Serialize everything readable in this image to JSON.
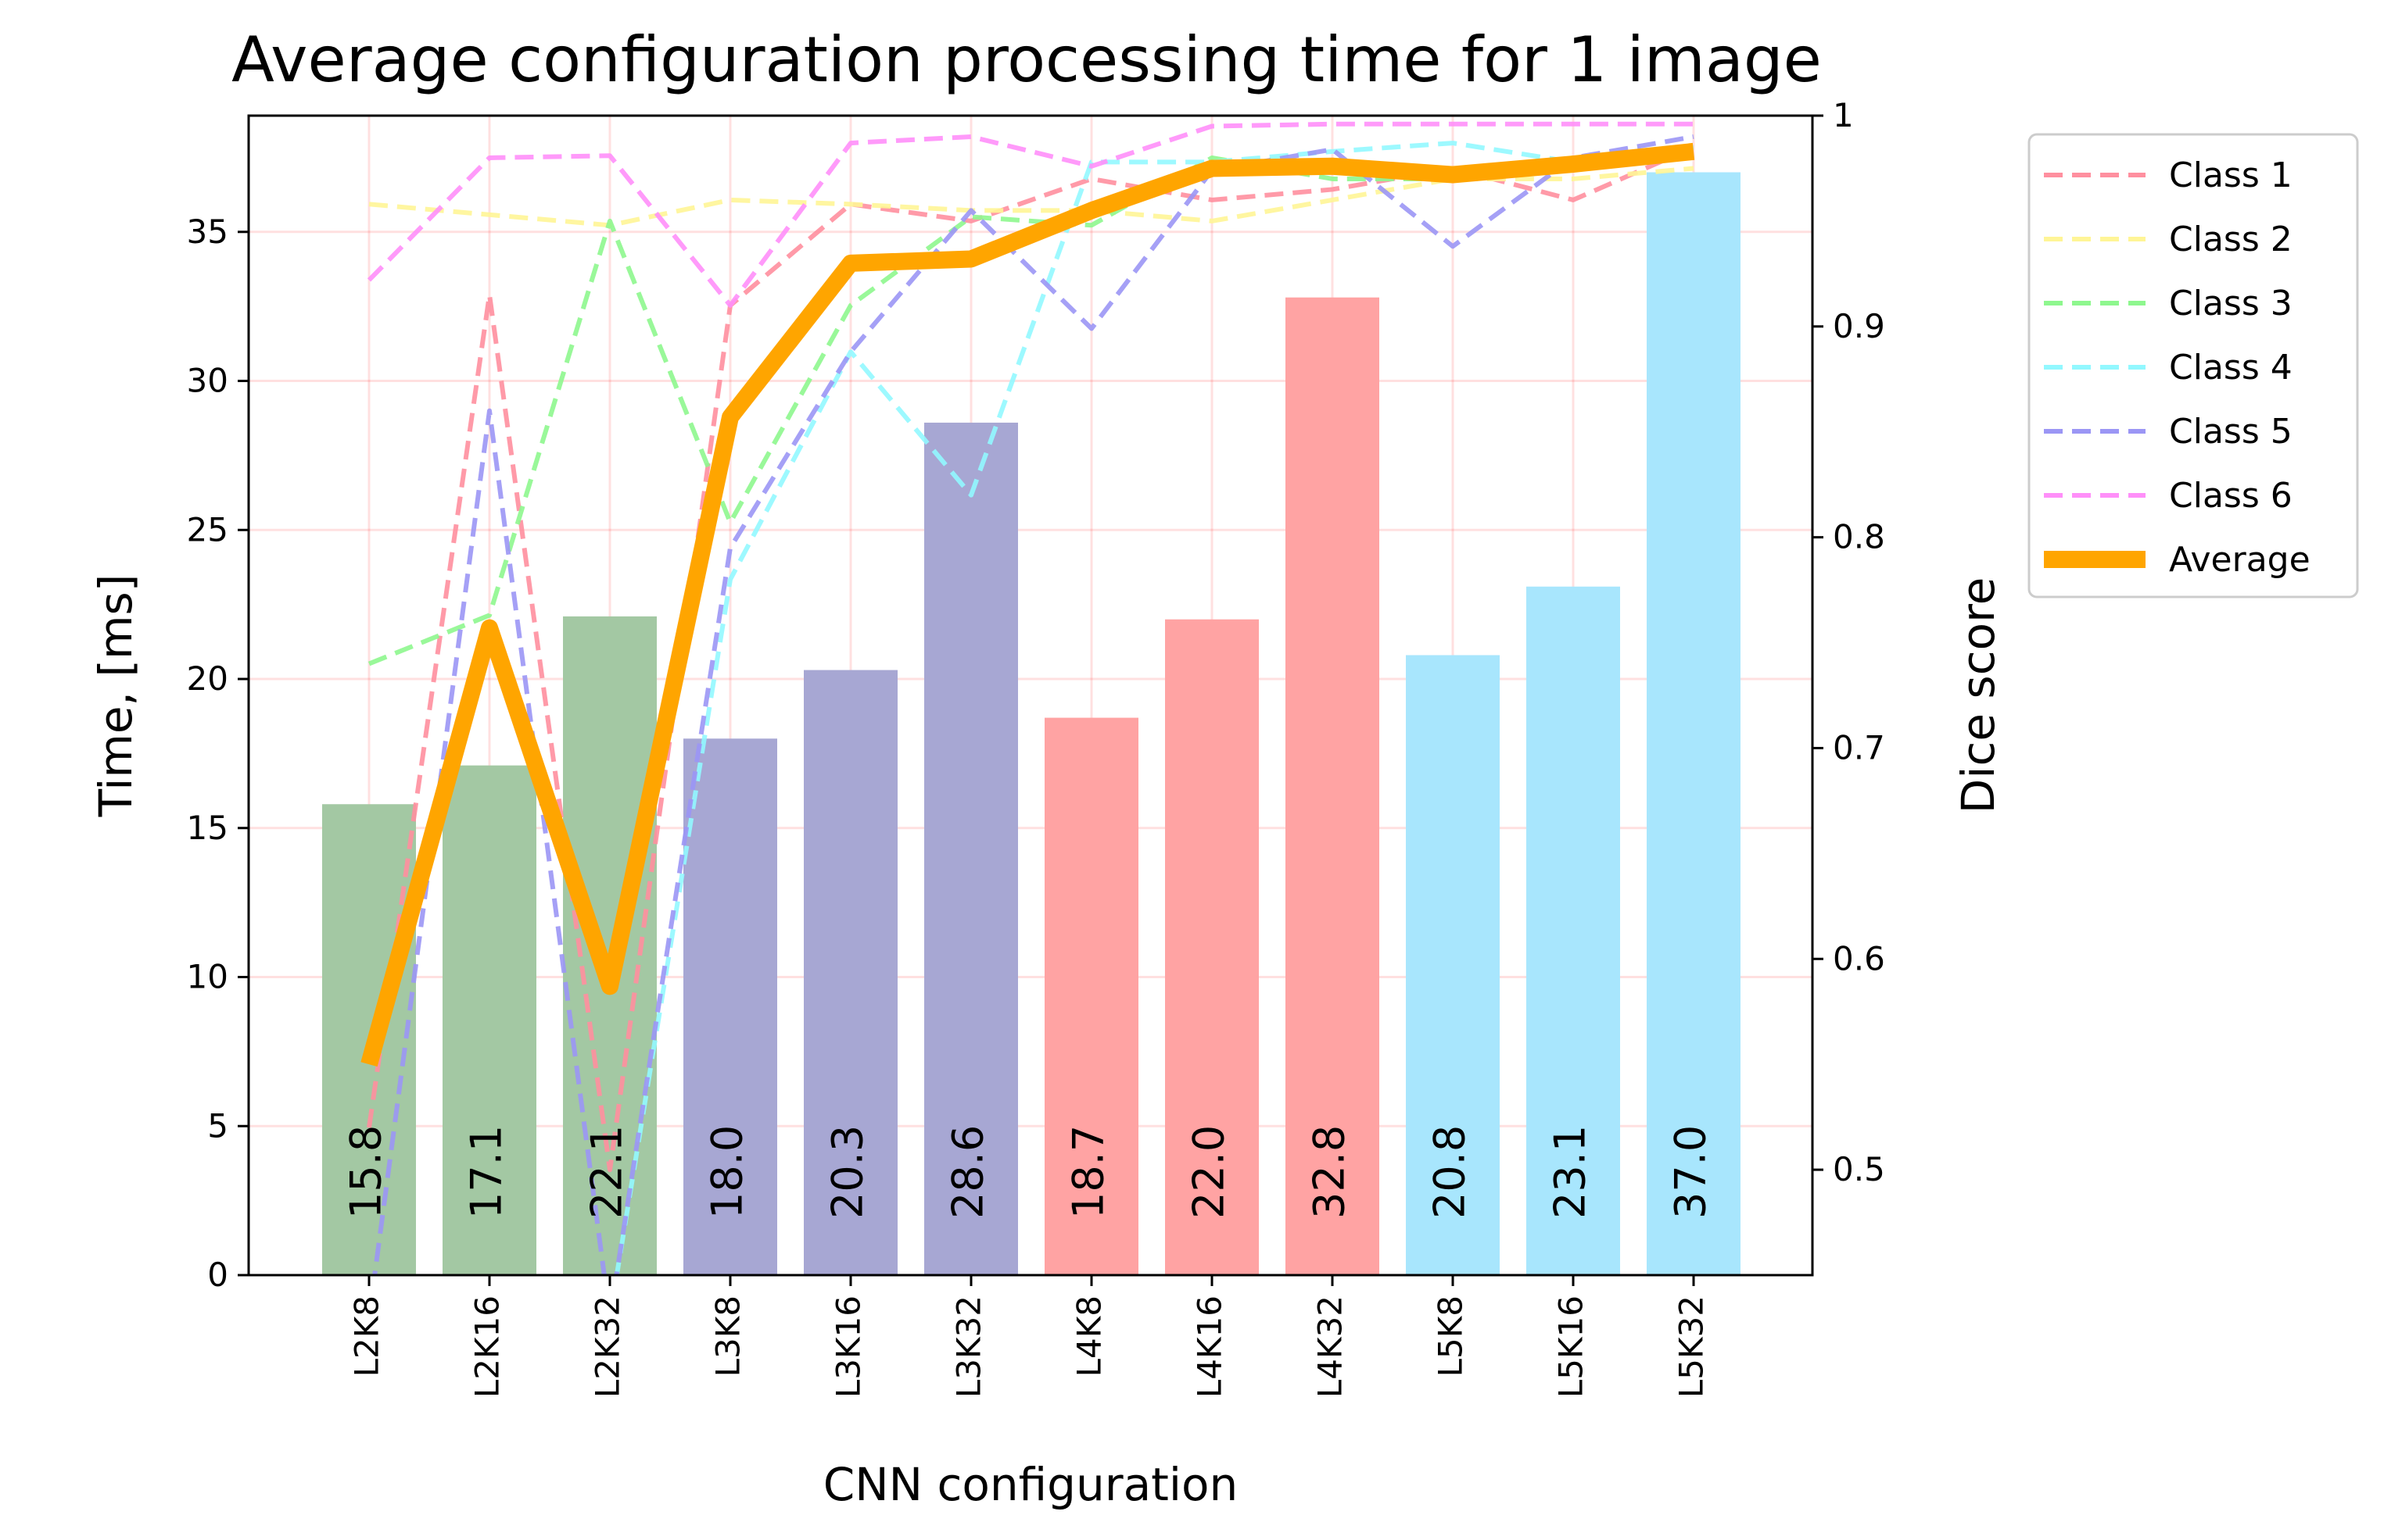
{
  "chart_data": {
    "type": "bar+line",
    "title": "Average configuration processing time for 1 image",
    "xlabel": "CNN configuration",
    "ylabel_left": "Time, [ms]",
    "ylabel_right": "Dice score",
    "ylim_left": [
      0,
      38.9
    ],
    "ylim_right": [
      0.45,
      1.0
    ],
    "yticks_left": [
      0,
      5,
      10,
      15,
      20,
      25,
      30,
      35
    ],
    "yticks_right": [
      0.5,
      0.6,
      0.7,
      0.8,
      0.9,
      1.0
    ],
    "grid": true,
    "legend_position": "outside-right",
    "categories": [
      "L2K8",
      "L2K16",
      "L2K32",
      "L3K8",
      "L3K16",
      "L3K32",
      "L4K8",
      "L4K16",
      "L4K32",
      "L5K8",
      "L5K16",
      "L5K32"
    ],
    "bars": {
      "values": [
        15.8,
        17.1,
        22.1,
        18.0,
        20.3,
        28.6,
        18.7,
        22.0,
        32.8,
        20.8,
        23.1,
        37.0
      ],
      "labels": [
        "15.8",
        "17.1",
        "22.1",
        "18.0",
        "20.3",
        "28.6",
        "18.7",
        "22.0",
        "32.8",
        "20.8",
        "23.1",
        "37.0"
      ],
      "colors": [
        "#a3c8a3",
        "#a3c8a3",
        "#a3c8a3",
        "#a7a7d3",
        "#a7a7d3",
        "#a7a7d3",
        "#ffa3a3",
        "#ffa3a3",
        "#ffa3a3",
        "#a8e6fd",
        "#a8e6fd",
        "#a8e6fd"
      ]
    },
    "series": [
      {
        "name": "Class 1",
        "color": "#ff8f9f",
        "values": [
          0.52,
          0.915,
          0.5,
          0.91,
          0.958,
          0.95,
          0.97,
          0.96,
          0.965,
          0.975,
          0.96,
          0.985
        ]
      },
      {
        "name": "Class 2",
        "color": "#fff596",
        "values": [
          0.958,
          0.953,
          0.948,
          0.96,
          0.958,
          0.955,
          0.955,
          0.95,
          0.96,
          0.97,
          0.97,
          0.975
        ]
      },
      {
        "name": "Class 3",
        "color": "#8ef78e",
        "values": [
          0.74,
          0.763,
          0.95,
          0.807,
          0.91,
          0.952,
          0.948,
          0.98,
          0.97,
          0.97,
          0.98,
          0.982
        ]
      },
      {
        "name": "Class 4",
        "color": "#92f8ff",
        "values": [
          0.43,
          0.44,
          0.43,
          0.78,
          0.888,
          0.82,
          0.978,
          0.978,
          0.983,
          0.987,
          0.978,
          0.985
        ]
      },
      {
        "name": "Class 5",
        "color": "#9b96f5",
        "values": [
          0.43,
          0.86,
          0.43,
          0.795,
          0.888,
          0.955,
          0.899,
          0.974,
          0.984,
          0.938,
          0.98,
          0.99
        ]
      },
      {
        "name": "Class 6",
        "color": "#ff8ff9",
        "values": [
          0.922,
          0.98,
          0.981,
          0.91,
          0.987,
          0.99,
          0.976,
          0.995,
          0.996,
          0.996,
          0.996,
          0.996
        ]
      },
      {
        "name": "Average",
        "color": "#ffa500",
        "values": [
          0.55,
          0.757,
          0.587,
          0.857,
          0.93,
          0.932,
          0.955,
          0.975,
          0.976,
          0.972,
          0.977,
          0.983
        ]
      }
    ]
  }
}
